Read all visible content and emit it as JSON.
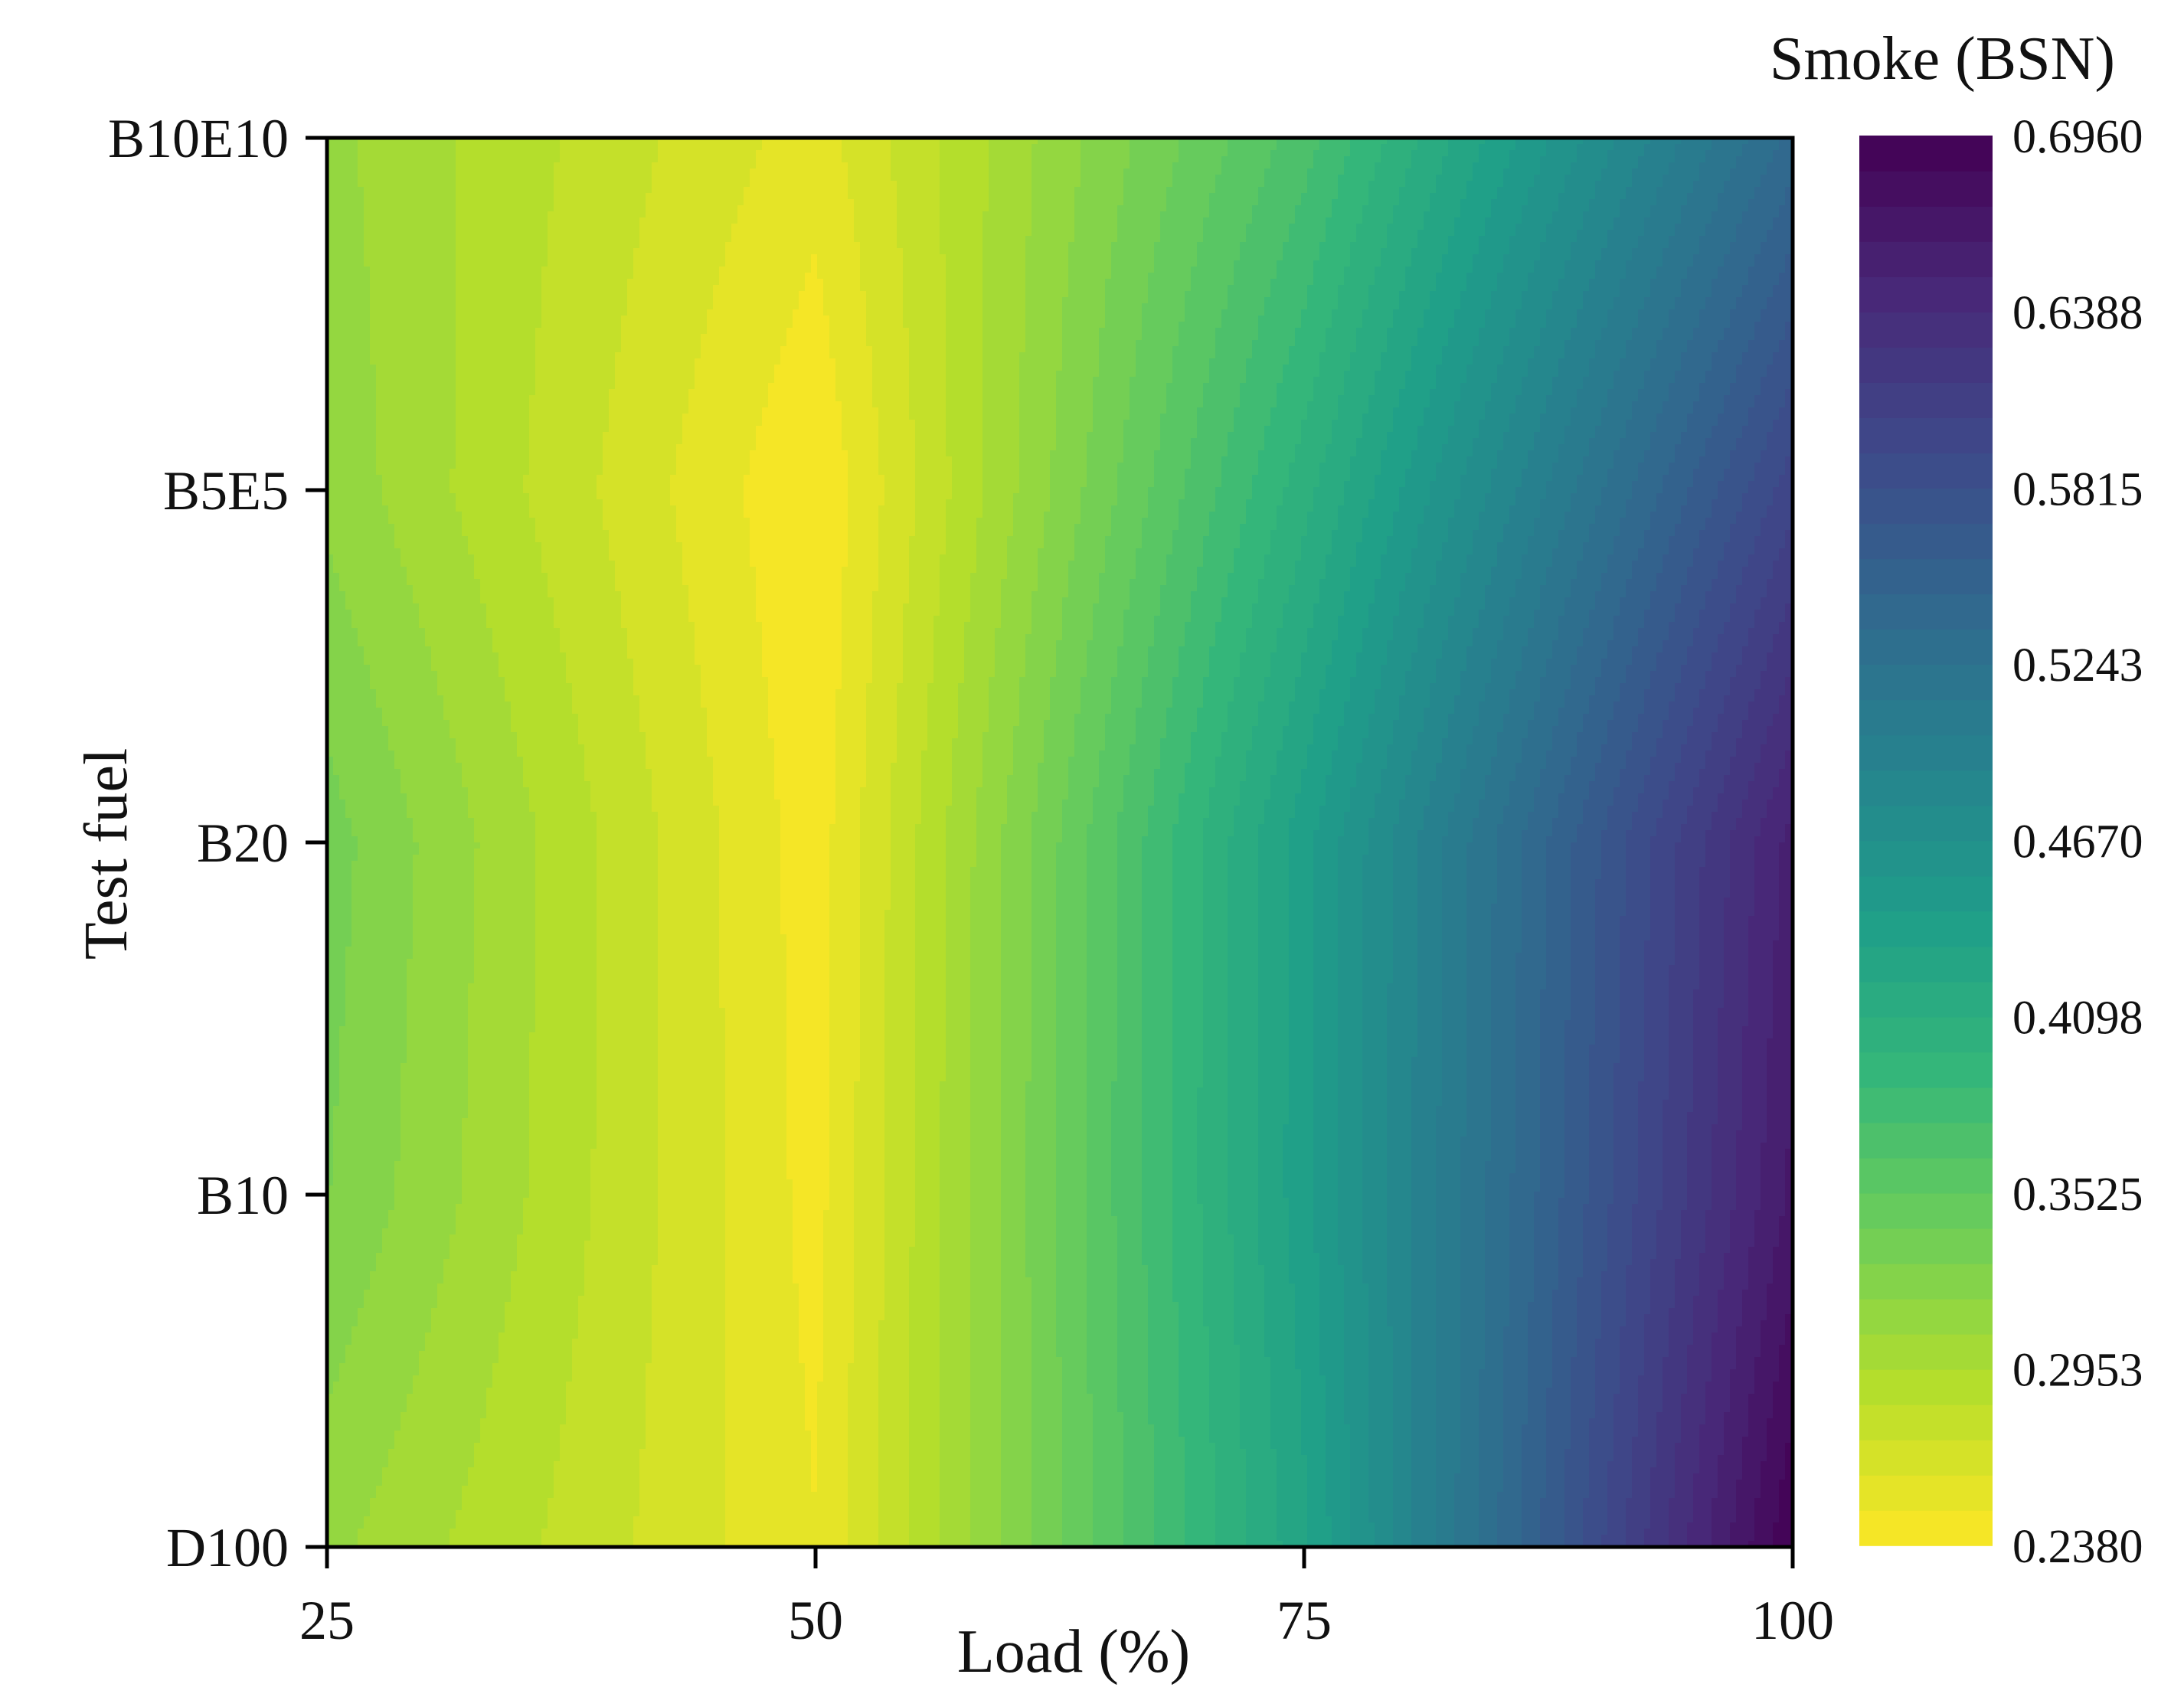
{
  "chart_data": {
    "type": "heatmap",
    "subtype": "filled-contour",
    "title": "",
    "xlabel": "Load (%)",
    "ylabel": "Test fuel",
    "colorbar_label": "Smoke (BSN)",
    "x": [
      25,
      50,
      75,
      100
    ],
    "x_tick_labels": [
      "25",
      "50",
      "75",
      "100"
    ],
    "xlim": [
      25,
      100
    ],
    "y_categories": [
      "D100",
      "B10",
      "B20",
      "B5E5",
      "B10E10"
    ],
    "z": [
      [
        0.31,
        0.25,
        0.43,
        0.696
      ],
      [
        0.33,
        0.245,
        0.44,
        0.665
      ],
      [
        0.335,
        0.243,
        0.44,
        0.655
      ],
      [
        0.315,
        0.238,
        0.405,
        0.6
      ],
      [
        0.31,
        0.255,
        0.37,
        0.54
      ]
    ],
    "colorbar_ticks": [
      "0.6960",
      "0.6388",
      "0.5815",
      "0.5243",
      "0.4670",
      "0.4098",
      "0.3525",
      "0.2953",
      "0.2380"
    ],
    "zlim": [
      0.238,
      0.696
    ],
    "levels": 40,
    "colormap": "viridis (reversed)",
    "colormap_stops": [
      "#fde725",
      "#b5de2b",
      "#6ece58",
      "#35b779",
      "#1f9e89",
      "#26828e",
      "#31688e",
      "#3e4989",
      "#482878",
      "#440154"
    ],
    "grid": false
  }
}
